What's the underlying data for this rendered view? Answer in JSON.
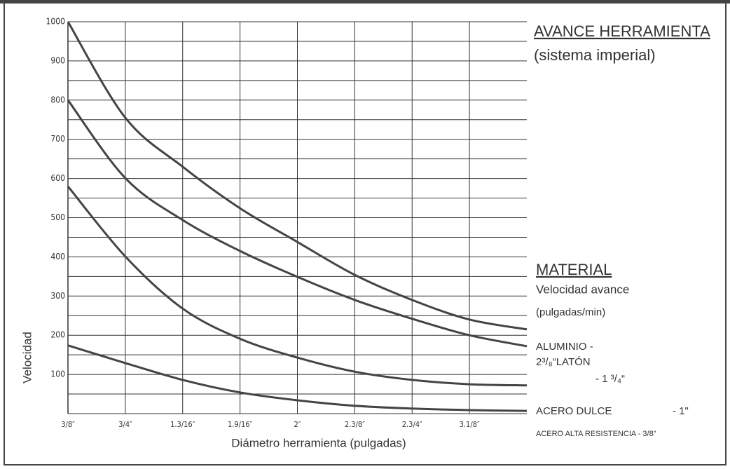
{
  "chart_data": {
    "type": "line",
    "categories": [
      "3/8″",
      "3/4″",
      "1.3/16″",
      "1.9/16″",
      "2″",
      "2.3/8″",
      "2.3/4″",
      "3.1/8″",
      null
    ],
    "series": [
      {
        "color": "#444444",
        "values": [
          1000,
          755,
          630,
          524,
          438,
          354,
          290,
          240,
          215
        ]
      },
      {
        "color": "#444444",
        "values": [
          800,
          601,
          494,
          415,
          349,
          290,
          242,
          200,
          172
        ]
      },
      {
        "color": "#444444",
        "values": [
          580,
          401,
          268,
          191,
          143,
          107,
          86,
          75,
          72
        ]
      },
      {
        "color": "#444444",
        "values": [
          174,
          129,
          86,
          54,
          34,
          20,
          13,
          9,
          7
        ]
      }
    ],
    "ylim": [
      0,
      1000
    ],
    "yticks": [
      100,
      200,
      300,
      400,
      500,
      600,
      700,
      800,
      900,
      1000
    ],
    "ygrid": [
      0,
      50,
      100,
      150,
      200,
      250,
      300,
      350,
      400,
      450,
      500,
      550,
      600,
      650,
      700,
      750,
      800,
      850,
      900,
      950,
      1000
    ],
    "grid": true,
    "xlabel": "Diámetro herramienta (pulgadas)",
    "ylabel": "Velocidad"
  },
  "side_panel": {
    "title": "AVANCE HERRAMIENTA",
    "subtitle": "(sistema imperial)",
    "material_heading": "MATERIAL",
    "material_sub": "Velocidad avance",
    "material_units": "(pulgadas/min)",
    "lines": [
      "ALUMINIO -",
      "2³/₈“LATÓN",
      "- 1 ³/₄“",
      "ACERO DULCE",
      "- 1\"",
      "ACERO ALTA RESISTENCIA - 3/8\""
    ]
  }
}
